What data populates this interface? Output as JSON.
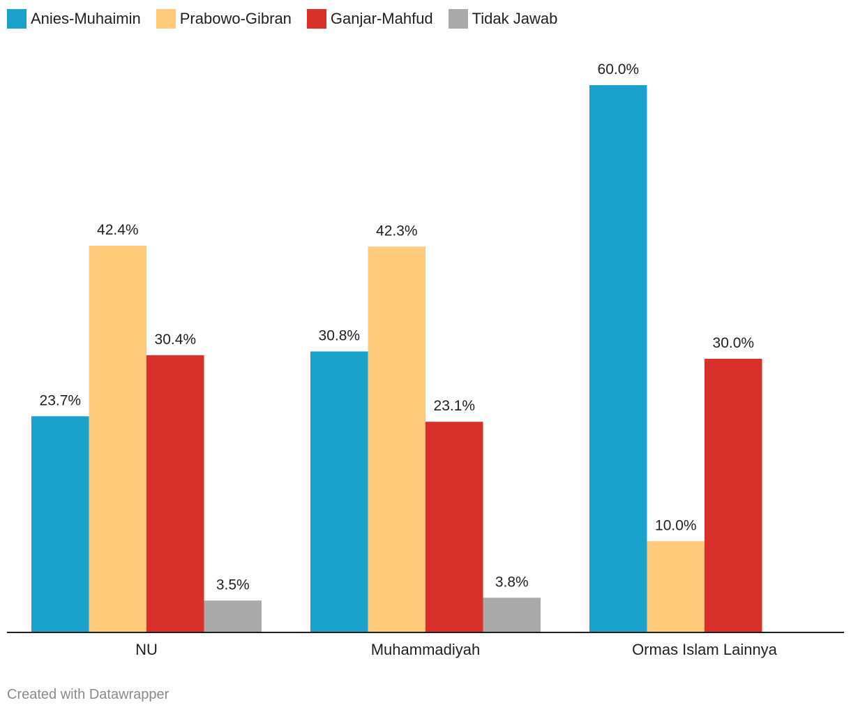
{
  "chart_data": {
    "type": "bar",
    "categories": [
      "NU",
      "Muhammadiyah",
      "Ormas Islam Lainnya"
    ],
    "series": [
      {
        "name": "Anies-Muhaimin",
        "color": "#1aa1cc",
        "values": [
          23.7,
          30.8,
          60.0
        ],
        "labels": [
          "23.7%",
          "30.8%",
          "60.0%"
        ]
      },
      {
        "name": "Prabowo-Gibran",
        "color": "#fec979",
        "values": [
          42.4,
          42.3,
          10.0
        ],
        "labels": [
          "42.4%",
          "42.3%",
          "10.0%"
        ]
      },
      {
        "name": "Ganjar-Mahfud",
        "color": "#d8302b",
        "values": [
          30.4,
          23.1,
          30.0
        ],
        "labels": [
          "30.4%",
          "23.1%",
          "30.0%"
        ]
      },
      {
        "name": "Tidak Jawab",
        "color": "#aaaaaa",
        "values": [
          3.5,
          3.8,
          null
        ],
        "labels": [
          "3.5%",
          "3.8%",
          null
        ]
      }
    ],
    "ylim": [
      0,
      60
    ],
    "grid": false,
    "legend": "top-left",
    "axis_color": "#1f1f1f"
  },
  "footer": {
    "credit": "Created with Datawrapper"
  }
}
